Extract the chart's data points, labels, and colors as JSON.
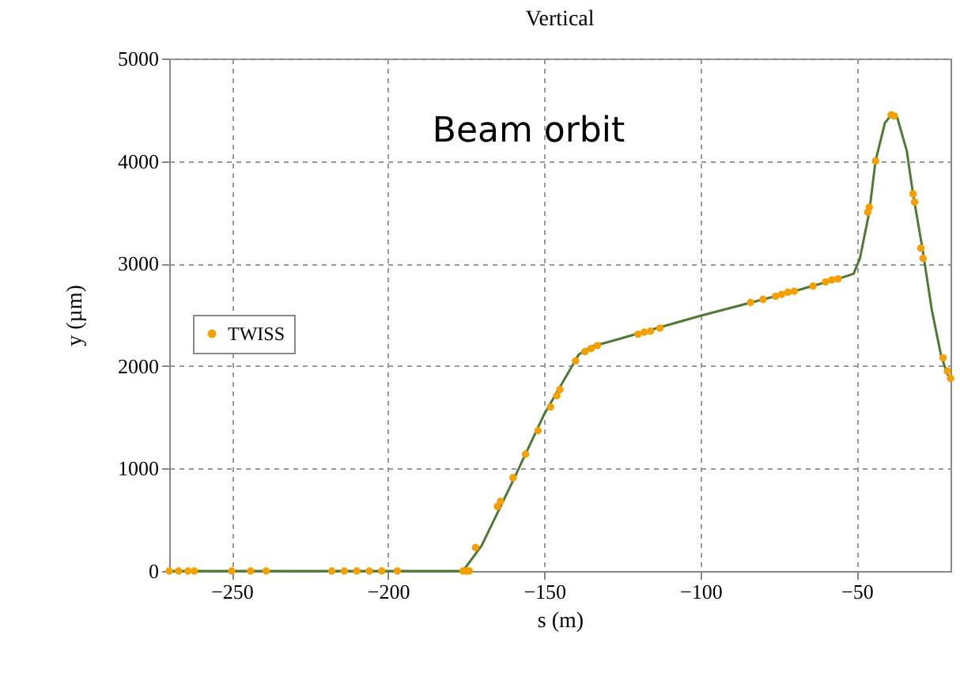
{
  "chart_data": {
    "type": "line",
    "title": "Vertical",
    "xlabel": "s (m)",
    "ylabel": "y (µm)",
    "annotations": [
      "Beam orbit"
    ],
    "series": [
      {
        "color": "#4e7a34",
        "marker": "none",
        "x": [
          -270,
          -176,
          -170,
          -160,
          -150,
          -139,
          -135,
          -130,
          -100,
          -70,
          -55,
          -51,
          -49,
          -46,
          -44,
          -41,
          -39,
          -37,
          -34,
          -32,
          -29,
          -26,
          -23,
          -21,
          -20
        ],
        "values": [
          0,
          0,
          250,
          880,
          1530,
          2110,
          2190,
          2230,
          2490,
          2730,
          2860,
          2900,
          3050,
          3500,
          4000,
          4370,
          4450,
          4420,
          4100,
          3680,
          3150,
          2550,
          2100,
          1920,
          1880
        ]
      },
      {
        "type": "scatter",
        "name": "TWISS",
        "color": "#f5a000",
        "marker": "circle",
        "x": [
          -270,
          -267,
          -264,
          -262,
          -250,
          -244,
          -239,
          -218,
          -214,
          -210,
          -206,
          -202,
          -197,
          -176,
          -175,
          -174,
          -172,
          -165,
          -164,
          -160,
          -156,
          -152,
          -148,
          -146,
          -145,
          -140,
          -137,
          -135,
          -133,
          -120,
          -118,
          -116,
          -113,
          -84,
          -80,
          -76,
          -74,
          -72,
          -70,
          -64,
          -60,
          -58,
          -56,
          -46.5,
          -46,
          -44,
          -39,
          -38,
          -32,
          -31.5,
          -29.5,
          -28.8,
          -22.4,
          -21,
          -20
        ],
        "values": [
          0,
          0,
          0,
          0,
          0,
          0,
          0,
          0,
          0,
          0,
          0,
          0,
          0,
          0,
          0,
          0,
          230,
          630,
          680,
          910,
          1140,
          1370,
          1600,
          1710,
          1770,
          2050,
          2140,
          2170,
          2200,
          2310,
          2330,
          2340,
          2370,
          2620,
          2650,
          2680,
          2700,
          2720,
          2730,
          2780,
          2820,
          2840,
          2850,
          3500,
          3550,
          4000,
          4450,
          4440,
          3680,
          3600,
          3150,
          3050,
          2080,
          1950,
          1880
        ]
      }
    ],
    "xlim": [
      -270,
      -20
    ],
    "xticks": [
      -250,
      -200,
      -150,
      -100,
      -50
    ],
    "ylim": [
      0,
      5000
    ],
    "yticks": [
      0,
      1000,
      2000,
      3000,
      4000,
      5000
    ],
    "grid": true,
    "legend": "left",
    "line_style": "solid"
  }
}
